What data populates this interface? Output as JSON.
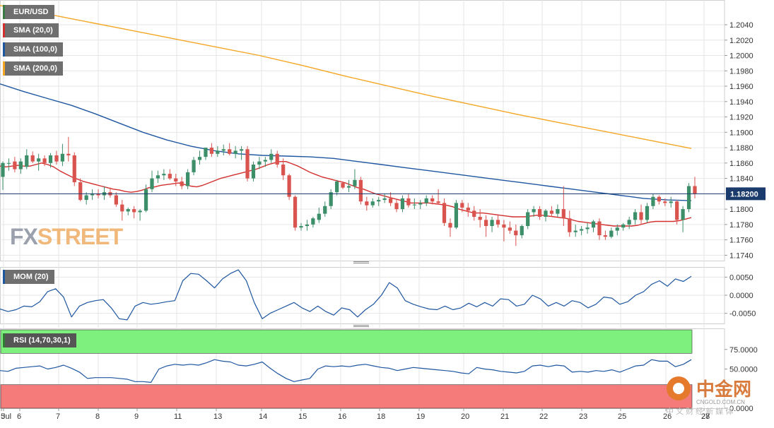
{
  "legends": {
    "symbol": {
      "label": "EUR/USD",
      "color": "#3a7d44"
    },
    "sma20": {
      "label": "SMA (20,0)",
      "color": "#d32f2f"
    },
    "sma100": {
      "label": "SMA (100,0)",
      "color": "#1e56a0"
    },
    "sma200": {
      "label": "SMA (200,0)",
      "color": "#f5a623"
    },
    "mom": {
      "label": "MOM (20)",
      "color": "#1e56a0"
    },
    "rsi": {
      "label": "RSI (14,70,30,1)",
      "color": "#2e7d32"
    }
  },
  "watermark": {
    "part1": "FX",
    "part2": "STREET"
  },
  "brand": {
    "name": "中金网",
    "domain": "CNGOLD.COM.CN",
    "slogan": "中 文 财 经 新 媒 体"
  },
  "colors": {
    "bull": "#3d8f6a",
    "bear": "#d9534f",
    "price_line": "#1a3b6b",
    "price_badge": "#1a3b6b",
    "rsi_over": "#7ef07e",
    "rsi_under": "#f57a7a",
    "grid": "#e6e6e6"
  },
  "chart_data": [
    {
      "type": "candlestick",
      "name": "EUR/USD",
      "ylim": [
        1.1733,
        1.2063
      ],
      "yticks": [
        "1.2040",
        "1.2020",
        "1.2000",
        "1.1980",
        "1.1960",
        "1.1940",
        "1.1920",
        "1.1900",
        "1.1880",
        "1.1860",
        "1.1840",
        "1.1820",
        "1.1800",
        "1.1780",
        "1.1760",
        "1.1740"
      ],
      "x_labels": [
        "Jul",
        "5",
        "6",
        "7",
        "8",
        "9",
        "11",
        "13",
        "14",
        "15",
        "16",
        "18",
        "19",
        "20",
        "21",
        "22",
        "23",
        "25",
        "26",
        "27",
        "28"
      ],
      "current_price": "1.18200",
      "candles": [
        [
          1.1842,
          1.1862,
          1.1825,
          1.186
        ],
        [
          1.186,
          1.1866,
          1.185,
          1.186
        ],
        [
          1.1862,
          1.1868,
          1.1848,
          1.1852
        ],
        [
          1.1852,
          1.1866,
          1.1846,
          1.1862
        ],
        [
          1.1855,
          1.1878,
          1.1852,
          1.187
        ],
        [
          1.187,
          1.1875,
          1.186,
          1.1862
        ],
        [
          1.1862,
          1.1872,
          1.185,
          1.1866
        ],
        [
          1.1866,
          1.187,
          1.1856,
          1.186
        ],
        [
          1.186,
          1.1873,
          1.1854,
          1.187
        ],
        [
          1.187,
          1.1876,
          1.1858,
          1.1862
        ],
        [
          1.1862,
          1.1885,
          1.1856,
          1.1872
        ],
        [
          1.1872,
          1.1894,
          1.1862,
          1.187
        ],
        [
          1.187,
          1.1874,
          1.183,
          1.1835
        ],
        [
          1.1835,
          1.184,
          1.181,
          1.1812
        ],
        [
          1.1812,
          1.1822,
          1.1806,
          1.1818
        ],
        [
          1.1818,
          1.1826,
          1.1812,
          1.182
        ],
        [
          1.182,
          1.1826,
          1.1814,
          1.1818
        ],
        [
          1.1818,
          1.183,
          1.1812,
          1.1822
        ],
        [
          1.1822,
          1.1828,
          1.1815,
          1.1818
        ],
        [
          1.1818,
          1.1822,
          1.1803,
          1.1806
        ],
        [
          1.1806,
          1.1812,
          1.1785,
          1.1797
        ],
        [
          1.1797,
          1.1802,
          1.1792,
          1.18
        ],
        [
          1.18,
          1.1804,
          1.1788,
          1.1796
        ],
        [
          1.1796,
          1.18,
          1.1785,
          1.1798
        ],
        [
          1.1798,
          1.1832,
          1.1796,
          1.1826
        ],
        [
          1.1826,
          1.185,
          1.1822,
          1.184
        ],
        [
          1.184,
          1.185,
          1.1834,
          1.1844
        ],
        [
          1.1844,
          1.1852,
          1.1838,
          1.1846
        ],
        [
          1.1846,
          1.1852,
          1.1838,
          1.184
        ],
        [
          1.184,
          1.1846,
          1.183,
          1.1836
        ],
        [
          1.1836,
          1.1842,
          1.1826,
          1.183
        ],
        [
          1.183,
          1.1852,
          1.1826,
          1.1848
        ],
        [
          1.1848,
          1.1868,
          1.1844,
          1.1864
        ],
        [
          1.1864,
          1.1876,
          1.1858,
          1.1868
        ],
        [
          1.1868,
          1.188,
          1.1864,
          1.188
        ],
        [
          1.188,
          1.1886,
          1.1868,
          1.1872
        ],
        [
          1.1872,
          1.1882,
          1.1868,
          1.1876
        ],
        [
          1.1876,
          1.1884,
          1.187,
          1.1878
        ],
        [
          1.1878,
          1.1886,
          1.187,
          1.1872
        ],
        [
          1.1872,
          1.1882,
          1.1866,
          1.1876
        ],
        [
          1.1876,
          1.1882,
          1.1864,
          1.1878
        ],
        [
          1.1878,
          1.1882,
          1.1836,
          1.184
        ],
        [
          1.184,
          1.1862,
          1.1836,
          1.1858
        ],
        [
          1.1858,
          1.1868,
          1.1852,
          1.1862
        ],
        [
          1.1862,
          1.1868,
          1.1855,
          1.1864
        ],
        [
          1.1864,
          1.1878,
          1.186,
          1.1872
        ],
        [
          1.1872,
          1.1876,
          1.1854,
          1.1858
        ],
        [
          1.1858,
          1.1866,
          1.1838,
          1.1844
        ],
        [
          1.1844,
          1.1846,
          1.1812,
          1.1816
        ],
        [
          1.1816,
          1.1818,
          1.1772,
          1.1776
        ],
        [
          1.1776,
          1.1782,
          1.1772,
          1.1778
        ],
        [
          1.1778,
          1.1786,
          1.1772,
          1.178
        ],
        [
          1.178,
          1.179,
          1.1776,
          1.1788
        ],
        [
          1.1786,
          1.1802,
          1.1782,
          1.1794
        ],
        [
          1.1794,
          1.181,
          1.179,
          1.1804
        ],
        [
          1.1804,
          1.1826,
          1.18,
          1.1822
        ],
        [
          1.1822,
          1.1838,
          1.1818,
          1.1836
        ],
        [
          1.1834,
          1.1836,
          1.1826,
          1.1828
        ],
        [
          1.1828,
          1.1838,
          1.1822,
          1.183
        ],
        [
          1.183,
          1.1852,
          1.1826,
          1.1838
        ],
        [
          1.1838,
          1.1842,
          1.1806,
          1.181
        ],
        [
          1.181,
          1.1816,
          1.1798,
          1.1805
        ],
        [
          1.1805,
          1.1814,
          1.1802,
          1.181
        ],
        [
          1.181,
          1.1816,
          1.1804,
          1.1812
        ],
        [
          1.1812,
          1.182,
          1.1808,
          1.1814
        ],
        [
          1.1814,
          1.1822,
          1.1804,
          1.1808
        ],
        [
          1.1808,
          1.1812,
          1.1796,
          1.18
        ],
        [
          1.18,
          1.1818,
          1.1796,
          1.1814
        ],
        [
          1.1814,
          1.182,
          1.1802,
          1.1805
        ],
        [
          1.1805,
          1.1814,
          1.18,
          1.1806
        ],
        [
          1.1806,
          1.1812,
          1.18,
          1.1808
        ],
        [
          1.1808,
          1.1818,
          1.1804,
          1.1814
        ],
        [
          1.1814,
          1.1818,
          1.1806,
          1.181
        ],
        [
          1.181,
          1.1826,
          1.1806,
          1.1808
        ],
        [
          1.1808,
          1.1814,
          1.1778,
          1.1782
        ],
        [
          1.1782,
          1.1788,
          1.1764,
          1.1776
        ],
        [
          1.1776,
          1.1812,
          1.1774,
          1.1808
        ],
        [
          1.1808,
          1.1812,
          1.1796,
          1.1802
        ],
        [
          1.1802,
          1.1808,
          1.179,
          1.1798
        ],
        [
          1.1798,
          1.1804,
          1.1785,
          1.179
        ],
        [
          1.179,
          1.18,
          1.1776,
          1.1786
        ],
        [
          1.1786,
          1.1792,
          1.1764,
          1.1778
        ],
        [
          1.1778,
          1.179,
          1.177,
          1.1786
        ],
        [
          1.1786,
          1.1792,
          1.1776,
          1.178
        ],
        [
          1.178,
          1.1786,
          1.1758,
          1.1776
        ],
        [
          1.1776,
          1.1784,
          1.1768,
          1.1772
        ],
        [
          1.1772,
          1.178,
          1.1752,
          1.1766
        ],
        [
          1.1766,
          1.178,
          1.1762,
          1.1778
        ],
        [
          1.1778,
          1.18,
          1.1774,
          1.1796
        ],
        [
          1.1796,
          1.1804,
          1.179,
          1.18
        ],
        [
          1.18,
          1.1804,
          1.1786,
          1.179
        ],
        [
          1.179,
          1.18,
          1.1784,
          1.1798
        ],
        [
          1.1798,
          1.1804,
          1.179,
          1.1794
        ],
        [
          1.1794,
          1.1806,
          1.179,
          1.18
        ],
        [
          1.18,
          1.183,
          1.1778,
          1.1788
        ],
        [
          1.1788,
          1.1798,
          1.1764,
          1.177
        ],
        [
          1.177,
          1.178,
          1.1764,
          1.1772
        ],
        [
          1.1772,
          1.1778,
          1.1766,
          1.1774
        ],
        [
          1.1774,
          1.1782,
          1.1768,
          1.1776
        ],
        [
          1.1776,
          1.1786,
          1.177,
          1.1784
        ],
        [
          1.1784,
          1.1788,
          1.176,
          1.1766
        ],
        [
          1.1766,
          1.1772,
          1.176,
          1.1764
        ],
        [
          1.1764,
          1.1776,
          1.1762,
          1.1772
        ],
        [
          1.1772,
          1.178,
          1.1766,
          1.1776
        ],
        [
          1.1776,
          1.1782,
          1.1772,
          1.178
        ],
        [
          1.178,
          1.179,
          1.1774,
          1.1786
        ],
        [
          1.1786,
          1.18,
          1.178,
          1.1796
        ],
        [
          1.1796,
          1.1806,
          1.178,
          1.1786
        ],
        [
          1.1786,
          1.1808,
          1.1782,
          1.1804
        ],
        [
          1.1804,
          1.182,
          1.18,
          1.1816
        ],
        [
          1.1816,
          1.1818,
          1.1806,
          1.181
        ],
        [
          1.181,
          1.1814,
          1.1804,
          1.1808
        ],
        [
          1.1808,
          1.1816,
          1.1802,
          1.181
        ],
        [
          1.181,
          1.1812,
          1.178,
          1.1786
        ],
        [
          1.1786,
          1.1804,
          1.177,
          1.18
        ],
        [
          1.18,
          1.1834,
          1.1796,
          1.183
        ],
        [
          1.183,
          1.1842,
          1.1814,
          1.182
        ]
      ],
      "sma20": [
        1.1856,
        1.1855,
        1.1856,
        1.1857,
        1.1856,
        1.1856,
        1.1858,
        1.186,
        1.1858,
        1.1855,
        1.185,
        1.1846,
        1.1842,
        1.1839,
        1.1836,
        1.1834,
        1.1832,
        1.183,
        1.1828,
        1.1826,
        1.1825,
        1.1823,
        1.1822,
        1.1823,
        1.1825,
        1.1828,
        1.1829,
        1.1831,
        1.1832,
        1.1833,
        1.1834,
        1.1832,
        1.183,
        1.1829,
        1.1831,
        1.1834,
        1.1837,
        1.184,
        1.1842,
        1.1844,
        1.1846,
        1.1848,
        1.185,
        1.1852,
        1.1855,
        1.1858,
        1.186,
        1.1862,
        1.1862,
        1.1859,
        1.1856,
        1.1852,
        1.1848,
        1.1845,
        1.1842,
        1.184,
        1.1838,
        1.1836,
        1.1834,
        1.1831,
        1.1828,
        1.1826,
        1.1823,
        1.182,
        1.1818,
        1.1816,
        1.1814,
        1.1812,
        1.181,
        1.1808,
        1.1808,
        1.1808,
        1.1808,
        1.1807,
        1.1806,
        1.1805,
        1.1803,
        1.18,
        1.1798,
        1.1796,
        1.1795,
        1.1795,
        1.1794,
        1.1793,
        1.1792,
        1.1791,
        1.179,
        1.179,
        1.179,
        1.1791,
        1.1792,
        1.1792,
        1.1791,
        1.179,
        1.1789,
        1.1788,
        1.1786,
        1.1784,
        1.1783,
        1.1782,
        1.1781,
        1.178,
        1.1779,
        1.1778,
        1.1778,
        1.1778,
        1.1778,
        1.1779,
        1.1781,
        1.1783,
        1.1784,
        1.1784,
        1.1784,
        1.1784,
        1.1785,
        1.1787,
        1.1789
      ],
      "sma100": [
        1.1963,
        1.1953,
        1.1944,
        1.1935,
        1.1924,
        1.1912,
        1.19,
        1.189,
        1.1882,
        1.1876,
        1.1872,
        1.187,
        1.1869,
        1.1868,
        1.1866,
        1.1862,
        1.1858,
        1.1854,
        1.185,
        1.1846,
        1.1842,
        1.1838,
        1.1834,
        1.183,
        1.1826,
        1.1822,
        1.1818,
        1.1814,
        1.1812,
        1.1811
      ],
      "sma200": [
        1.2065,
        1.2055,
        1.2044,
        1.2033,
        1.2022,
        1.2011,
        1.2,
        1.1987,
        1.1973,
        1.196,
        1.1947,
        1.1935,
        1.1923,
        1.1912,
        1.1901,
        1.189,
        1.1879
      ]
    },
    {
      "type": "line",
      "name": "MOM (20)",
      "yticks": [
        "0.0050",
        "0.0000",
        "-0.0050"
      ],
      "ylim": [
        -0.0078,
        0.0078
      ],
      "values": [
        -0.0038,
        -0.0045,
        -0.004,
        -0.003,
        -0.0032,
        -0.0018,
        0.001,
        0.0018,
        -0.0005,
        -0.006,
        -0.003,
        -0.002,
        -0.0015,
        -0.0012,
        -0.0035,
        -0.0065,
        -0.0068,
        -0.003,
        -0.002,
        -0.0025,
        -0.0022,
        -0.0018,
        -0.0015,
        0.004,
        0.006,
        0.0058,
        0.004,
        0.002,
        0.0045,
        0.006,
        0.007,
        0.004,
        -0.002,
        -0.0065,
        -0.005,
        -0.004,
        -0.003,
        -0.002,
        -0.0035,
        -0.0045,
        -0.003,
        -0.0045,
        -0.0055,
        -0.0035,
        -0.004,
        -0.006,
        -0.004,
        -0.0025,
        0.0,
        0.0035,
        0.002,
        -0.0015,
        -0.0025,
        -0.0032,
        -0.0038,
        -0.004,
        -0.003,
        -0.004,
        -0.0035,
        -0.0022,
        -0.0032,
        -0.002,
        -0.003,
        -0.001,
        -0.0012,
        -0.003,
        -0.0025,
        0.0,
        -0.001,
        -0.003,
        -0.002,
        -0.003,
        -0.0015,
        -0.002,
        -0.0035,
        -0.0025,
        -0.0005,
        -0.0008,
        -0.0025,
        -0.0018,
        0.0,
        0.001,
        0.003,
        0.004,
        0.0025,
        0.0045,
        0.0038,
        0.0052
      ]
    },
    {
      "type": "line",
      "name": "RSI (14,70,30,1)",
      "yticks": [
        "75.0000",
        "50.0000",
        "0.0000"
      ],
      "ylim": [
        0,
        100
      ],
      "bands": {
        "overbought": 70,
        "oversold": 30
      },
      "values": [
        48,
        47,
        51,
        52,
        53,
        54,
        50,
        52,
        55,
        51,
        46,
        38,
        39,
        39,
        39,
        38,
        37,
        34,
        34,
        33,
        50,
        54,
        56,
        55,
        56,
        55,
        58,
        62,
        60,
        59,
        55,
        54,
        56,
        59,
        51,
        44,
        38,
        34,
        36,
        38,
        50,
        54,
        53,
        54,
        53,
        55,
        56,
        54,
        52,
        51,
        48,
        50,
        52,
        51,
        50,
        49,
        48,
        47,
        45,
        44,
        52,
        50,
        49,
        47,
        46,
        45,
        47,
        54,
        55,
        53,
        55,
        54,
        46,
        47,
        46,
        48,
        47,
        49,
        46,
        50,
        54,
        55,
        62,
        60,
        60,
        53,
        56,
        62
      ]
    }
  ]
}
